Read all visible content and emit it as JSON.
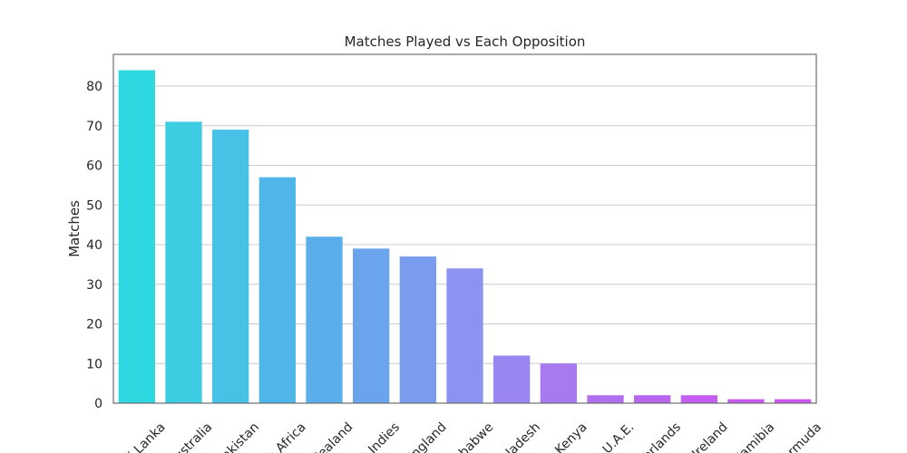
{
  "chart_data": {
    "type": "bar",
    "title": "Matches Played vs Each Opposition",
    "xlabel": "",
    "ylabel": "Matches",
    "ylim": [
      0,
      88
    ],
    "yticks": [
      0,
      10,
      20,
      30,
      40,
      50,
      60,
      70,
      80
    ],
    "grid": true,
    "categories": [
      "Sri Lanka",
      "Australia",
      "Pakistan",
      "South Africa",
      "New Zealand",
      "West Indies",
      "England",
      "Zimbabwe",
      "Bangladesh",
      "Kenya",
      "U.A.E.",
      "Netherlands",
      "Ireland",
      "Namibia",
      "Bermuda"
    ],
    "tick_labels": [
      "Sri Lanka",
      "Australia",
      "Pakistan",
      "h Africa",
      "Zealand",
      "t Indies",
      "England",
      "mbabwe",
      "gladesh",
      "v Kenya",
      "U.A.E.",
      "therlands",
      "v Ireland",
      "Namibia",
      "Bermuda"
    ],
    "values": [
      84,
      71,
      69,
      57,
      42,
      39,
      37,
      34,
      12,
      10,
      2,
      2,
      2,
      1,
      1
    ],
    "colors": [
      "#2dd8e0",
      "#3ccde3",
      "#47c2e6",
      "#4fb6e8",
      "#5aaeea",
      "#6aa4ec",
      "#7a9cee",
      "#8c92f0",
      "#9a86f0",
      "#a87af0",
      "#b06ef0",
      "#b866f0",
      "#c35ef0",
      "#c95af0",
      "#cf55f0"
    ]
  }
}
